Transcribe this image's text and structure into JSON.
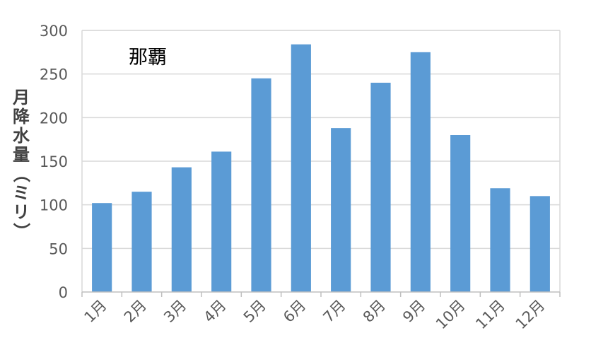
{
  "chart_data": {
    "type": "bar",
    "title": "那覇",
    "xlabel": "",
    "ylabel": "月降水量（ミリ）",
    "categories": [
      "1月",
      "2月",
      "3月",
      "4月",
      "5月",
      "6月",
      "7月",
      "8月",
      "9月",
      "10月",
      "11月",
      "12月"
    ],
    "values": [
      102,
      115,
      143,
      161,
      245,
      284,
      188,
      240,
      275,
      180,
      119,
      110
    ],
    "ylim": [
      0,
      300
    ],
    "yticks": [
      0,
      50,
      100,
      150,
      200,
      250,
      300
    ],
    "grid": true,
    "legend": "none",
    "colors": {
      "bar": "#5B9BD5",
      "grid": "#D9D9D9",
      "axis": "#BFBFBF"
    }
  }
}
